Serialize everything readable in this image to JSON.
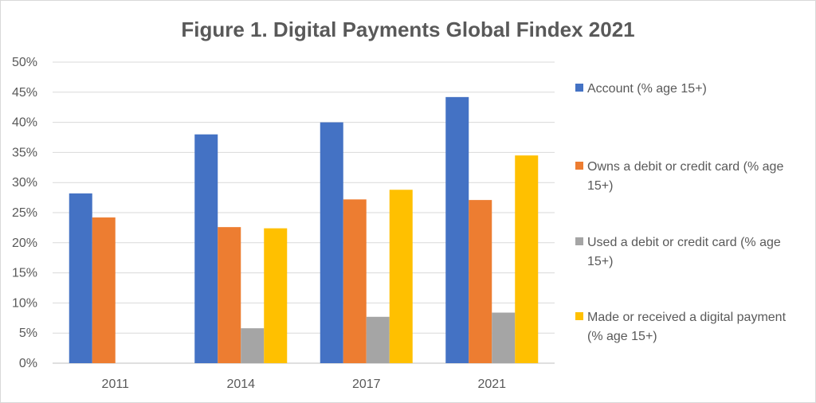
{
  "chart_data": {
    "type": "bar",
    "title": "Figure 1. Digital Payments Global Findex 2021",
    "xlabel": "",
    "ylabel": "",
    "categories": [
      "2011",
      "2014",
      "2017",
      "2021"
    ],
    "ylim": [
      0,
      50
    ],
    "yticks": [
      "0%",
      "5%",
      "10%",
      "15%",
      "20%",
      "25%",
      "30%",
      "35%",
      "40%",
      "45%",
      "50%"
    ],
    "grid": true,
    "legend_position": "right",
    "series": [
      {
        "name": "Account (% age 15+)",
        "legend_lines": [
          "Account (% age 15+)"
        ],
        "color": "#4472c4",
        "values": [
          28.2,
          38.0,
          40.0,
          44.2
        ]
      },
      {
        "name": "Owns a debit or credit card (% age 15+)",
        "legend_lines": [
          "Owns a debit or credit card (% age",
          "15+)"
        ],
        "color": "#ed7d31",
        "values": [
          24.2,
          22.6,
          27.2,
          27.1
        ]
      },
      {
        "name": "Used a debit or credit card (% age 15+)",
        "legend_lines": [
          "Used a debit or credit card (% age",
          "15+)"
        ],
        "color": "#a5a5a5",
        "values": [
          null,
          5.8,
          7.7,
          8.4
        ]
      },
      {
        "name": "Made or received a digital payment (% age 15+)",
        "legend_lines": [
          "Made or received a digital payment",
          "(% age 15+)"
        ],
        "color": "#ffc000",
        "values": [
          null,
          22.4,
          28.8,
          34.5
        ]
      }
    ]
  }
}
